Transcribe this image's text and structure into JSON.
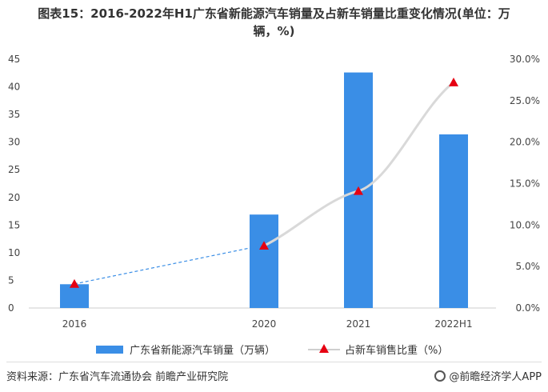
{
  "title": {
    "line1": "图表15：2016-2022年H1广东省新能源汽车销量及占新车销量比重变化情况(单位：万",
    "line2": "辆，%)"
  },
  "chart_data": {
    "type": "bar",
    "categories": [
      "2016",
      "2020",
      "2021",
      "2022H1"
    ],
    "series": [
      {
        "name": "广东省新能源汽车销量（万辆）",
        "type": "bar",
        "axis": "left",
        "values": [
          4.3,
          16.9,
          42.6,
          31.4
        ],
        "color": "#3a8ee6"
      },
      {
        "name": "占新车销售比重（%）",
        "type": "line",
        "axis": "right",
        "values": [
          2.9,
          7.5,
          14.1,
          27.2
        ],
        "color": "#e60012",
        "line_color": "#d9d9d9"
      }
    ],
    "left_axis": {
      "ylim": [
        0,
        45
      ],
      "ticks": [
        "0",
        "5",
        "10",
        "15",
        "20",
        "25",
        "30",
        "35",
        "40",
        "45"
      ]
    },
    "right_axis": {
      "ylim": [
        0,
        30
      ],
      "ticks": [
        "0.0%",
        "5.0%",
        "10.0%",
        "15.0%",
        "20.0%",
        "25.0%",
        "30.0%"
      ]
    },
    "x_tick_labels": [
      "2016",
      "2020",
      "2021",
      "2022H1"
    ],
    "legend_position": "bottom",
    "grid": false
  },
  "legend": {
    "bar_label": "广东省新能源汽车销量（万辆）",
    "line_label": "占新车销售比重（%）"
  },
  "footer": {
    "source": "资料来源：广东省汽车流通协会 前瞻产业研究院",
    "brand": "@前瞻经济学人APP"
  }
}
